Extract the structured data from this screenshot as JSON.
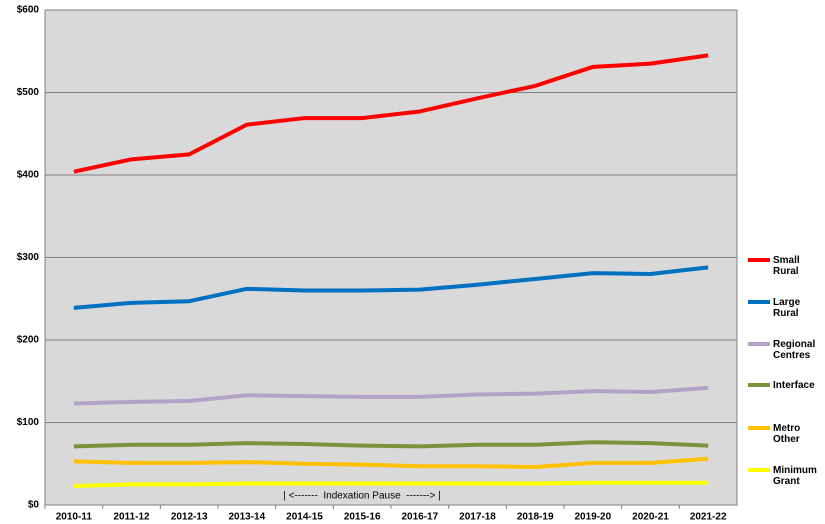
{
  "chart_data": {
    "type": "line",
    "categories": [
      "2010-11",
      "2011-12",
      "2012-13",
      "2013-14",
      "2014-15",
      "2015-16",
      "2016-17",
      "2017-18",
      "2018-19",
      "2019-20",
      "2020-21",
      "2021-22"
    ],
    "series": [
      {
        "name": "Small Rural",
        "color": "#ff0000",
        "values": [
          404,
          419,
          425,
          461,
          469,
          469,
          477,
          493,
          508,
          531,
          535,
          545
        ]
      },
      {
        "name": "Large Rural",
        "color": "#0070c0",
        "values": [
          239,
          245,
          247,
          262,
          260,
          260,
          261,
          267,
          274,
          281,
          280,
          288
        ]
      },
      {
        "name": "Regional Centres",
        "color": "#b3a2c7",
        "values": [
          123,
          125,
          126,
          133,
          132,
          131,
          131,
          134,
          135,
          138,
          137,
          142
        ]
      },
      {
        "name": "Interface",
        "color": "#77933c",
        "values": [
          71,
          73,
          73,
          75,
          74,
          72,
          71,
          73,
          73,
          76,
          75,
          72
        ]
      },
      {
        "name": "Metro Other",
        "color": "#ffc000",
        "values": [
          53,
          51,
          51,
          52,
          50,
          49,
          47,
          47,
          46,
          51,
          51,
          56
        ]
      },
      {
        "name": "Minimum Grant",
        "color": "#ffff00",
        "values": [
          23,
          25,
          25,
          26,
          26,
          26,
          26,
          26,
          26,
          27,
          27,
          27
        ]
      }
    ],
    "ylim": [
      0,
      600
    ],
    "yticks": [
      {
        "value": 0,
        "label": "$0"
      },
      {
        "value": 100,
        "label": "$100"
      },
      {
        "value": 200,
        "label": "$200"
      },
      {
        "value": 300,
        "label": "$300"
      },
      {
        "value": 400,
        "label": "$400"
      },
      {
        "value": 500,
        "label": "$500"
      },
      {
        "value": 600,
        "label": "$600"
      }
    ],
    "grid": true,
    "legend": "right",
    "annotation": "| <-------  Indexation Pause  -------> |"
  }
}
